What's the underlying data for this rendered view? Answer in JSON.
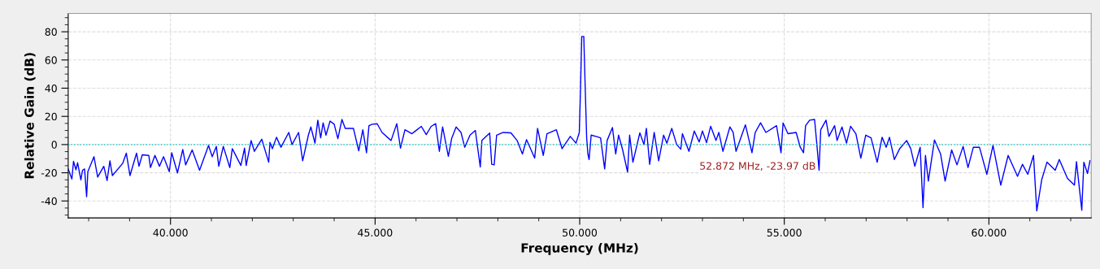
{
  "chart_data": {
    "type": "line",
    "xlabel": "Frequency (MHz)",
    "ylabel": "Relative Gain (dB)",
    "xlim": [
      37.5,
      62.5
    ],
    "ylim": [
      -52,
      93
    ],
    "xticks": [
      {
        "value": 38,
        "label": null
      },
      {
        "value": 39,
        "label": null
      },
      {
        "value": 40,
        "label": "40.000"
      },
      {
        "value": 41,
        "label": null
      },
      {
        "value": 42,
        "label": null
      },
      {
        "value": 43,
        "label": null
      },
      {
        "value": 44,
        "label": null
      },
      {
        "value": 45,
        "label": "45.000"
      },
      {
        "value": 46,
        "label": null
      },
      {
        "value": 47,
        "label": null
      },
      {
        "value": 48,
        "label": null
      },
      {
        "value": 49,
        "label": null
      },
      {
        "value": 50,
        "label": "50.000"
      },
      {
        "value": 51,
        "label": null
      },
      {
        "value": 52,
        "label": null
      },
      {
        "value": 53,
        "label": null
      },
      {
        "value": 54,
        "label": null
      },
      {
        "value": 55,
        "label": "55.000"
      },
      {
        "value": 56,
        "label": null
      },
      {
        "value": 57,
        "label": null
      },
      {
        "value": 58,
        "label": null
      },
      {
        "value": 59,
        "label": null
      },
      {
        "value": 60,
        "label": "60.000"
      },
      {
        "value": 61,
        "label": null
      },
      {
        "value": 62,
        "label": null
      }
    ],
    "yticks": [
      {
        "value": -50,
        "label": null
      },
      {
        "value": -45,
        "label": null
      },
      -40,
      {
        "value": -35,
        "label": null
      },
      {
        "value": -30,
        "label": null
      },
      {
        "value": -25,
        "label": null
      },
      -20,
      {
        "value": -15,
        "label": null
      },
      {
        "value": -10,
        "label": null
      },
      {
        "value": -5,
        "label": null
      },
      0,
      {
        "value": 5,
        "label": null
      },
      {
        "value": 10,
        "label": null
      },
      {
        "value": 15,
        "label": null
      },
      20,
      {
        "value": 25,
        "label": null
      },
      {
        "value": 30,
        "label": null
      },
      {
        "value": 35,
        "label": null
      },
      40,
      {
        "value": 45,
        "label": null
      },
      {
        "value": 50,
        "label": null
      },
      {
        "value": 55,
        "label": null
      },
      60,
      {
        "value": 65,
        "label": null
      },
      {
        "value": 70,
        "label": null
      },
      {
        "value": 75,
        "label": null
      },
      80,
      {
        "value": 85,
        "label": null
      },
      {
        "value": 90,
        "label": null
      }
    ],
    "grid": true,
    "marker": "none",
    "line_style": "solid",
    "ref_lines": [
      {
        "axis": "y",
        "value": 0,
        "color": "#00c0c0",
        "line_style": "dotted"
      }
    ],
    "annotations": [
      "52.872 MHz, -23.97 dB"
    ],
    "series": [
      {
        "color": "#0000ff",
        "x": [
          37.5,
          37.59,
          37.63,
          37.69,
          37.73,
          37.81,
          37.85,
          37.9,
          37.95,
          37.98,
          38.13,
          38.22,
          38.37,
          38.45,
          38.52,
          38.58,
          38.83,
          38.92,
          39.01,
          39.17,
          39.23,
          39.31,
          39.47,
          39.51,
          39.62,
          39.73,
          39.83,
          39.97,
          40.03,
          40.17,
          40.3,
          40.37,
          40.53,
          40.71,
          40.93,
          41.02,
          41.12,
          41.18,
          41.29,
          41.45,
          41.51,
          41.72,
          41.81,
          41.85,
          41.97,
          42.05,
          42.23,
          42.4,
          42.43,
          42.49,
          42.59,
          42.7,
          42.89,
          42.97,
          43.13,
          43.23,
          43.37,
          43.43,
          43.53,
          43.6,
          43.67,
          43.73,
          43.8,
          43.9,
          44.0,
          44.09,
          44.19,
          44.27,
          44.47,
          44.6,
          44.7,
          44.79,
          44.85,
          44.93,
          45.05,
          45.17,
          45.39,
          45.53,
          45.62,
          45.73,
          45.9,
          46.13,
          46.25,
          46.37,
          46.48,
          46.57,
          46.65,
          46.79,
          46.87,
          46.98,
          47.1,
          47.19,
          47.32,
          47.45,
          47.57,
          47.61,
          47.8,
          47.85,
          47.91,
          47.97,
          48.13,
          48.32,
          48.47,
          48.6,
          48.7,
          48.9,
          48.97,
          49.11,
          49.2,
          49.43,
          49.57,
          49.77,
          49.91,
          49.99,
          50.02,
          50.05,
          50.1,
          50.13,
          50.17,
          50.2,
          50.23,
          50.28,
          50.4,
          50.51,
          50.61,
          50.67,
          50.8,
          50.88,
          50.95,
          51.05,
          51.17,
          51.22,
          51.3,
          51.47,
          51.57,
          51.63,
          51.71,
          51.82,
          51.93,
          52.05,
          52.13,
          52.25,
          52.37,
          52.47,
          52.51,
          52.67,
          52.8,
          52.92,
          53.0,
          53.1,
          53.2,
          53.33,
          53.4,
          53.5,
          53.67,
          53.75,
          53.82,
          54.05,
          54.21,
          54.29,
          54.42,
          54.55,
          54.81,
          54.92,
          54.97,
          55.09,
          55.29,
          55.39,
          55.47,
          55.52,
          55.62,
          55.74,
          55.79,
          55.85,
          55.89,
          56.02,
          56.09,
          56.23,
          56.29,
          56.41,
          56.52,
          56.62,
          56.75,
          56.87,
          56.99,
          57.12,
          57.27,
          57.39,
          57.49,
          57.57,
          57.69,
          57.82,
          57.99,
          58.09,
          58.19,
          58.32,
          58.39,
          58.45,
          58.52,
          58.67,
          58.82,
          58.93,
          59.09,
          59.22,
          59.37,
          59.49,
          59.62,
          59.77,
          59.95,
          60.1,
          60.29,
          60.47,
          60.7,
          60.82,
          60.95,
          61.09,
          61.17,
          61.29,
          61.42,
          61.62,
          61.72,
          61.92,
          62.09,
          62.14,
          62.27,
          62.32,
          62.41,
          62.47
        ],
        "values": [
          -17.3,
          -24.4,
          -11.9,
          -17.9,
          -12.9,
          -25,
          -18.2,
          -17.3,
          -37,
          -19.2,
          -8.6,
          -23,
          -15.4,
          -25.5,
          -11.5,
          -22,
          -13.4,
          -6.1,
          -22,
          -6.1,
          -15.4,
          -7.3,
          -7.7,
          -16.3,
          -7.7,
          -15.4,
          -8.6,
          -19.2,
          -5.8,
          -20.1,
          -3.5,
          -14.4,
          -3.8,
          -18.2,
          -0.6,
          -8.6,
          -1.3,
          -15.4,
          -1.3,
          -16.3,
          -2.9,
          -14.8,
          -2.5,
          -14.8,
          2.9,
          -4.8,
          3.8,
          -12.5,
          1.5,
          -2.9,
          5.2,
          -1.9,
          8.6,
          0,
          8.6,
          -11.5,
          6.7,
          12.5,
          1,
          17.3,
          4.8,
          15.4,
          6.7,
          16.7,
          14.4,
          4.2,
          17.8,
          11.5,
          11.5,
          -4.4,
          10.5,
          -5.8,
          13.4,
          14.4,
          14.8,
          8.6,
          2.9,
          14.8,
          -2.5,
          10.5,
          7.7,
          12.9,
          7.1,
          12.9,
          14.8,
          -4.8,
          12.5,
          -8.3,
          4.2,
          12.5,
          8.6,
          -1.9,
          6.7,
          10,
          -15.9,
          2.9,
          8.1,
          -14,
          -14.4,
          6.7,
          8.6,
          8.3,
          2.9,
          -6.7,
          3.5,
          -9.6,
          11.5,
          -7.7,
          7.7,
          10.5,
          -2.9,
          5.8,
          1,
          8.6,
          39.3,
          76.7,
          76.7,
          45.1,
          4.8,
          -6.7,
          -10.6,
          6.7,
          5.8,
          4.8,
          -17.3,
          2.9,
          12.1,
          -6.7,
          6.7,
          -3.8,
          -19.6,
          6.7,
          -12.5,
          8.3,
          0,
          11.5,
          -14,
          8.6,
          -11.5,
          6.7,
          1,
          11.5,
          0,
          -3.3,
          7.7,
          -4.8,
          9.6,
          1.9,
          9.6,
          1.3,
          13,
          2.9,
          8.6,
          -4.8,
          12.5,
          8.6,
          -4.8,
          14,
          -5.8,
          8.6,
          15.4,
          8.6,
          13.4,
          -5.8,
          15.4,
          7.7,
          8.6,
          -1.9,
          -5.8,
          13.4,
          17.3,
          17.8,
          1.9,
          -18.2,
          10.5,
          17.3,
          5.8,
          13.4,
          2.9,
          12.5,
          1,
          13,
          7.7,
          -9.6,
          6.7,
          4.8,
          -12.5,
          5.2,
          -1.9,
          5.2,
          -10.6,
          -2.9,
          2.9,
          -2.9,
          -15.4,
          -1.9,
          -44.7,
          -7.7,
          -25.9,
          3.3,
          -6.7,
          -25.9,
          -3.8,
          -14.4,
          -1.3,
          -16.3,
          -1.9,
          -1.9,
          -21.1,
          -0.6,
          -28.8,
          -7.7,
          -22.5,
          -14,
          -21.1,
          -7.7,
          -47,
          -25,
          -12.5,
          -18.2,
          -10.6,
          -24,
          -28.8,
          -12.1,
          -46.6,
          -12.5,
          -20.5,
          -11.5
        ]
      }
    ]
  }
}
